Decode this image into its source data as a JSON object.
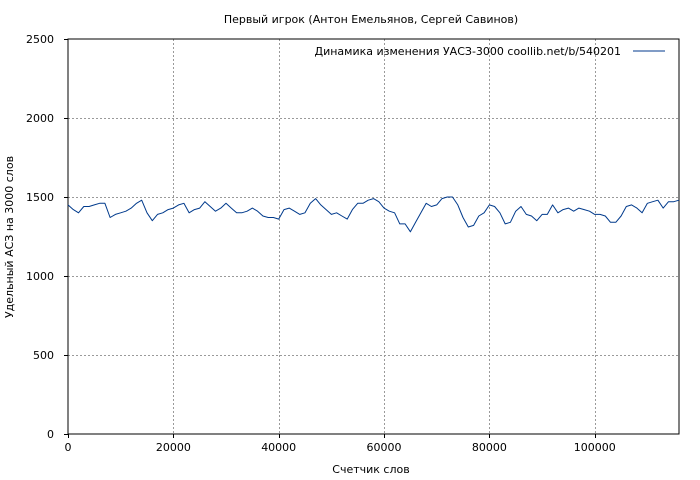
{
  "colors": {
    "series": "#003a8c",
    "grid": "#9a9a9a",
    "axis": "#000000",
    "background": "#ffffff"
  },
  "chart_data": {
    "type": "line",
    "title": "Первый игрок (Антон Емельянов, Сергей Савинов)",
    "xlabel": "Счетчик слов",
    "ylabel": "Удельный АСЗ на 3000 слов",
    "xlim": [
      0,
      116000
    ],
    "ylim": [
      0,
      2500
    ],
    "xticks": [
      0,
      20000,
      40000,
      60000,
      80000,
      100000
    ],
    "xtick_labels": [
      "0",
      "20000",
      "40000",
      "60000",
      "80000",
      "100000"
    ],
    "yticks": [
      0,
      500,
      1000,
      1500,
      2000,
      2500
    ],
    "ytick_labels": [
      "0",
      "500",
      "1000",
      "1500",
      "2000",
      "2500"
    ],
    "grid": true,
    "legend_position": "top-right",
    "series": [
      {
        "name": "Динамика изменения УАСЗ-3000  coollib.net/b/540201",
        "x": [
          0,
          1000,
          2000,
          3000,
          4000,
          5000,
          6000,
          7000,
          8000,
          9000,
          10000,
          11000,
          12000,
          13000,
          14000,
          15000,
          16000,
          17000,
          18000,
          19000,
          20000,
          21000,
          22000,
          23000,
          24000,
          25000,
          26000,
          27000,
          28000,
          29000,
          30000,
          31000,
          32000,
          33000,
          34000,
          35000,
          36000,
          37000,
          38000,
          39000,
          40000,
          41000,
          42000,
          43000,
          44000,
          45000,
          46000,
          47000,
          48000,
          49000,
          50000,
          51000,
          52000,
          53000,
          54000,
          55000,
          56000,
          57000,
          58000,
          59000,
          60000,
          61000,
          62000,
          63000,
          64000,
          65000,
          66000,
          67000,
          68000,
          69000,
          70000,
          71000,
          72000,
          73000,
          74000,
          75000,
          76000,
          77000,
          78000,
          79000,
          80000,
          81000,
          82000,
          83000,
          84000,
          85000,
          86000,
          87000,
          88000,
          89000,
          90000,
          91000,
          92000,
          93000,
          94000,
          95000,
          96000,
          97000,
          98000,
          99000,
          100000,
          101000,
          102000,
          103000,
          104000,
          105000,
          106000,
          107000,
          108000,
          109000,
          110000,
          111000,
          112000,
          113000,
          114000,
          115000,
          116000
        ],
        "values": [
          1450,
          1420,
          1400,
          1440,
          1440,
          1450,
          1460,
          1460,
          1370,
          1390,
          1400,
          1410,
          1430,
          1460,
          1480,
          1400,
          1350,
          1390,
          1400,
          1420,
          1430,
          1450,
          1460,
          1400,
          1420,
          1430,
          1470,
          1440,
          1410,
          1430,
          1460,
          1430,
          1400,
          1400,
          1410,
          1430,
          1410,
          1380,
          1370,
          1370,
          1360,
          1420,
          1430,
          1410,
          1390,
          1400,
          1460,
          1490,
          1450,
          1420,
          1390,
          1400,
          1380,
          1360,
          1420,
          1460,
          1460,
          1480,
          1490,
          1470,
          1430,
          1410,
          1400,
          1330,
          1330,
          1280,
          1340,
          1400,
          1460,
          1440,
          1450,
          1490,
          1500,
          1500,
          1450,
          1370,
          1310,
          1320,
          1380,
          1400,
          1450,
          1440,
          1400,
          1330,
          1340,
          1410,
          1440,
          1390,
          1380,
          1350,
          1390,
          1390,
          1450,
          1400,
          1420,
          1430,
          1410,
          1430,
          1420,
          1410,
          1390,
          1390,
          1380,
          1340,
          1340,
          1380,
          1440,
          1450,
          1430,
          1400,
          1460,
          1470,
          1480,
          1430,
          1470,
          1470,
          1480
        ]
      }
    ]
  }
}
